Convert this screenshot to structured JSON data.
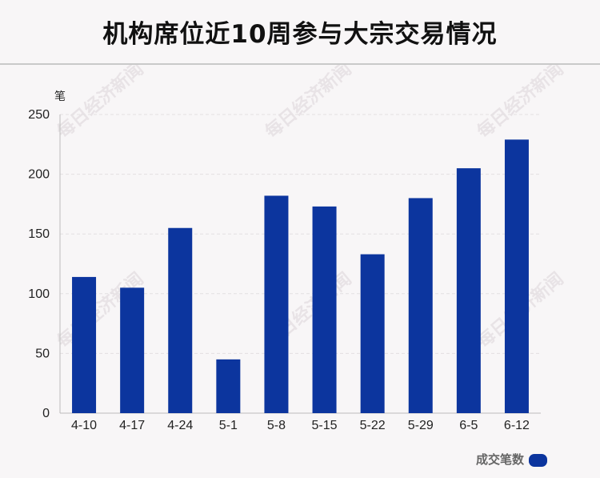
{
  "title": "机构席位近10周参与大宗交易情况",
  "watermark": "每日经济新闻",
  "colors": {
    "bar": "#0c359e",
    "grid": "#e3e0e2",
    "axis": "#bbbbbb",
    "text": "#222222",
    "legend_text": "#666666"
  },
  "chart_data": {
    "type": "bar",
    "title": "机构席位近10周参与大宗交易情况",
    "ylabel": "笔",
    "xlabel": "",
    "ylim": [
      0,
      250
    ],
    "yticks": [
      0,
      50,
      100,
      150,
      200,
      250
    ],
    "categories": [
      "4-10",
      "4-17",
      "4-24",
      "5-1",
      "5-8",
      "5-15",
      "5-22",
      "5-29",
      "6-5",
      "6-12"
    ],
    "series": [
      {
        "name": "成交笔数",
        "values": [
          114,
          105,
          155,
          45,
          182,
          173,
          133,
          180,
          205,
          229
        ]
      }
    ],
    "grid": true,
    "legend": "bottom-right"
  }
}
